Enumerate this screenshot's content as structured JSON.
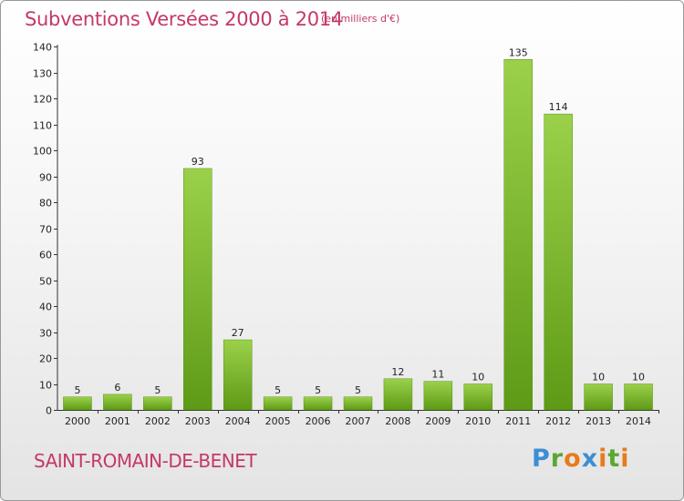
{
  "title": "Subventions Versées 2000 à 2014",
  "subtitle": "(en milliers d'€)",
  "commune": "SAINT-ROMAIN-DE-BENET",
  "logo": {
    "p": "P",
    "r": "r",
    "o": "o",
    "x": "x",
    "i": "i",
    "t": "t",
    "i2": "i"
  },
  "colors": {
    "bar_top": "#9bd14a",
    "bar_bottom": "#5e9a16",
    "accent": "#c4386b"
  },
  "chart_data": {
    "type": "bar",
    "title": "Subventions Versées 2000 à 2014",
    "subtitle": "(en milliers d'€)",
    "categories": [
      "2000",
      "2001",
      "2002",
      "2003",
      "2004",
      "2005",
      "2006",
      "2007",
      "2008",
      "2009",
      "2010",
      "2011",
      "2012",
      "2013",
      "2014"
    ],
    "values": [
      5,
      6,
      5,
      93,
      27,
      5,
      5,
      5,
      12,
      11,
      10,
      135,
      114,
      10,
      10
    ],
    "ylim": [
      0,
      140
    ],
    "yticks": [
      0,
      10,
      20,
      30,
      40,
      50,
      60,
      70,
      80,
      90,
      100,
      110,
      120,
      130,
      140
    ],
    "grid": false,
    "legend": "none"
  }
}
